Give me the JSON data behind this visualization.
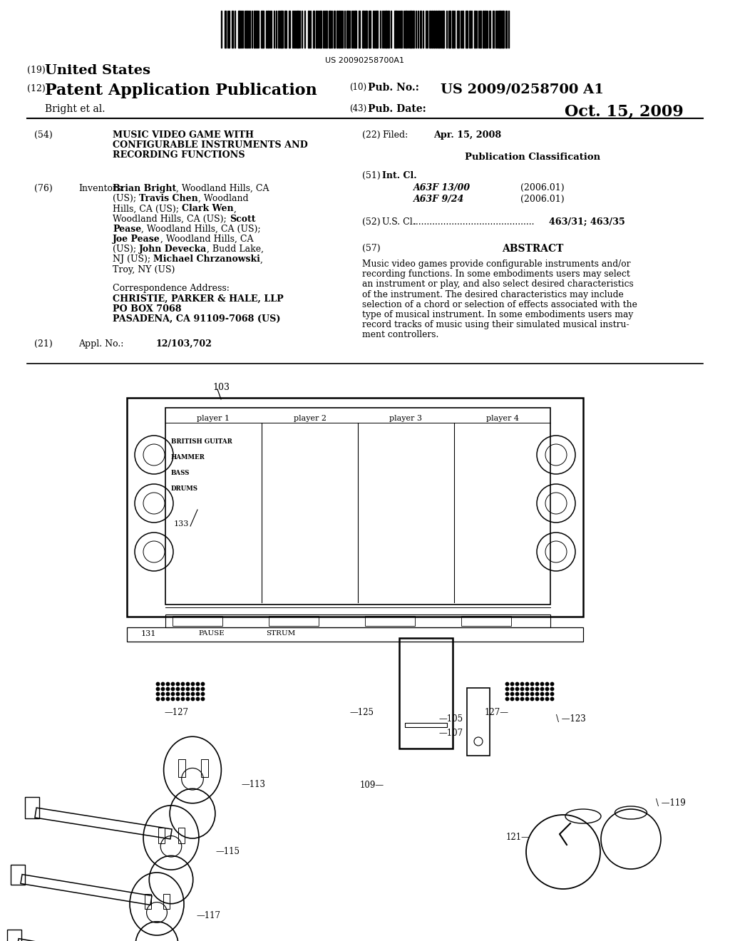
{
  "background_color": "#ffffff",
  "barcode_text": "US 20090258700A1",
  "header": {
    "line19_num": "(19)",
    "line19_text": "United States",
    "line12_num": "(12)",
    "line12_text": "Patent Application Publication",
    "line12_sub": "Bright et al.",
    "pub_no_num": "(10)",
    "pub_no_label": "Pub. No.:",
    "pub_no": "US 2009/0258700 A1",
    "pub_date_num": "(43)",
    "pub_date_label": "Pub. Date:",
    "pub_date": "Oct. 15, 2009"
  },
  "left_col": {
    "title_num": "(54)",
    "title_lines": [
      "MUSIC VIDEO GAME WITH",
      "CONFIGURABLE INSTRUMENTS AND",
      "RECORDING FUNCTIONS"
    ],
    "inventors_num": "(76)",
    "inventors_label": "Inventors:",
    "inventors_lines": [
      [
        [
          "Brian Bright",
          true
        ],
        [
          ", Woodland Hills, CA",
          false
        ]
      ],
      [
        [
          "(US); ",
          false
        ],
        [
          "Travis Chen",
          true
        ],
        [
          ", Woodland",
          false
        ]
      ],
      [
        [
          "Hills, CA (US); ",
          false
        ],
        [
          "Clark Wen",
          true
        ],
        [
          ",",
          false
        ]
      ],
      [
        [
          "Woodland Hills, CA (US); ",
          false
        ],
        [
          "Scott",
          true
        ]
      ],
      [
        [
          "Pease",
          true
        ],
        [
          ", Woodland Hills, CA (US);",
          false
        ]
      ],
      [
        [
          "Joe Pease",
          true
        ],
        [
          ", Woodland Hills, CA",
          false
        ]
      ],
      [
        [
          "(US); ",
          false
        ],
        [
          "John Devecka",
          true
        ],
        [
          ", Budd Lake,",
          false
        ]
      ],
      [
        [
          "NJ (US); ",
          false
        ],
        [
          "Michael Chrzanowski",
          true
        ],
        [
          ",",
          false
        ]
      ],
      [
        [
          "Troy, NY (US)",
          false
        ]
      ]
    ],
    "corr_label": "Correspondence Address:",
    "corr_line1": "CHRISTIE, PARKER & HALE, LLP",
    "corr_line2": "PO BOX 7068",
    "corr_line3": "PASADENA, CA 91109-7068 (US)",
    "appl_num": "(21)",
    "appl_label": "Appl. No.:",
    "appl_val": "12/103,702"
  },
  "right_col": {
    "filed_num": "(22)",
    "filed_label": "Filed:",
    "filed_date": "Apr. 15, 2008",
    "pub_class_header": "Publication Classification",
    "int_cl_num": "(51)",
    "int_cl_label": "Int. Cl.",
    "int_cl_entries": [
      [
        "A63F 13/00",
        "(2006.01)"
      ],
      [
        "A63F 9/24",
        "(2006.01)"
      ]
    ],
    "us_cl_num": "(52)",
    "us_cl_label": "U.S. Cl.",
    "us_cl_dots": "............................................",
    "us_cl_val": "463/31; 463/35",
    "abstract_num": "(57)",
    "abstract_header": "ABSTRACT",
    "abstract_lines": [
      "Music video games provide configurable instruments and/or",
      "recording functions. In some embodiments users may select",
      "an instrument or play, and also select desired characteristics",
      "of the instrument. The desired characteristics may include",
      "selection of a chord or selection of effects associated with the",
      "type of musical instrument. In some embodiments users may",
      "record tracks of music using their simulated musical instru-",
      "ment controllers."
    ]
  },
  "figure": {
    "label_103": "103",
    "label_133": "133",
    "label_131": "131",
    "label_125": "125",
    "label_127a": "127",
    "label_127b": "127",
    "label_123": "123",
    "label_105": "105",
    "label_107": "107",
    "label_109": "109",
    "label_113": "113",
    "label_115": "115",
    "label_117": "117",
    "label_119": "119",
    "label_121": "121",
    "players": [
      "player 1",
      "player 2",
      "player 3",
      "player 4"
    ],
    "screen_texts": [
      "BRITISH GUITAR",
      "HAMMER",
      "BASS",
      "DRUMS"
    ],
    "pause_label": "PAUSE",
    "strum_label": "STRUM"
  }
}
